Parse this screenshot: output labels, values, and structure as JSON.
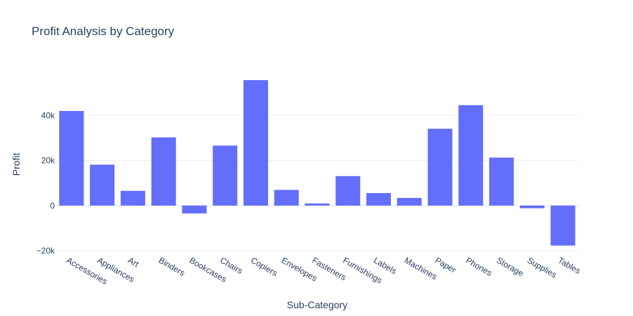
{
  "chart_data": {
    "type": "bar",
    "title": "Profit Analysis by Category",
    "xlabel": "Sub-Category",
    "ylabel": "Profit",
    "categories": [
      "Accessories",
      "Appliances",
      "Art",
      "Binders",
      "Bookcases",
      "Chairs",
      "Copiers",
      "Envelopes",
      "Fasteners",
      "Furnishings",
      "Labels",
      "Machines",
      "Paper",
      "Phones",
      "Storage",
      "Supplies",
      "Tables"
    ],
    "values": [
      41937,
      18138,
      6528,
      30222,
      -3473,
      26590,
      55618,
      6964,
      950,
      13059,
      5546,
      3385,
      34054,
      44516,
      21279,
      -1189,
      -17725
    ],
    "ylim": [
      -20000,
      60000
    ],
    "yticks": [
      -20000,
      0,
      20000,
      40000
    ],
    "ytick_labels": [
      "−20k",
      "0",
      "20k",
      "40k"
    ],
    "grid": true,
    "legend": "none",
    "colors": {
      "bar": "#636efa",
      "grid": "#ebedf0",
      "zeroline": "#ebedf0",
      "text": "#2a3f5f",
      "title": "#2a3f5f"
    }
  }
}
